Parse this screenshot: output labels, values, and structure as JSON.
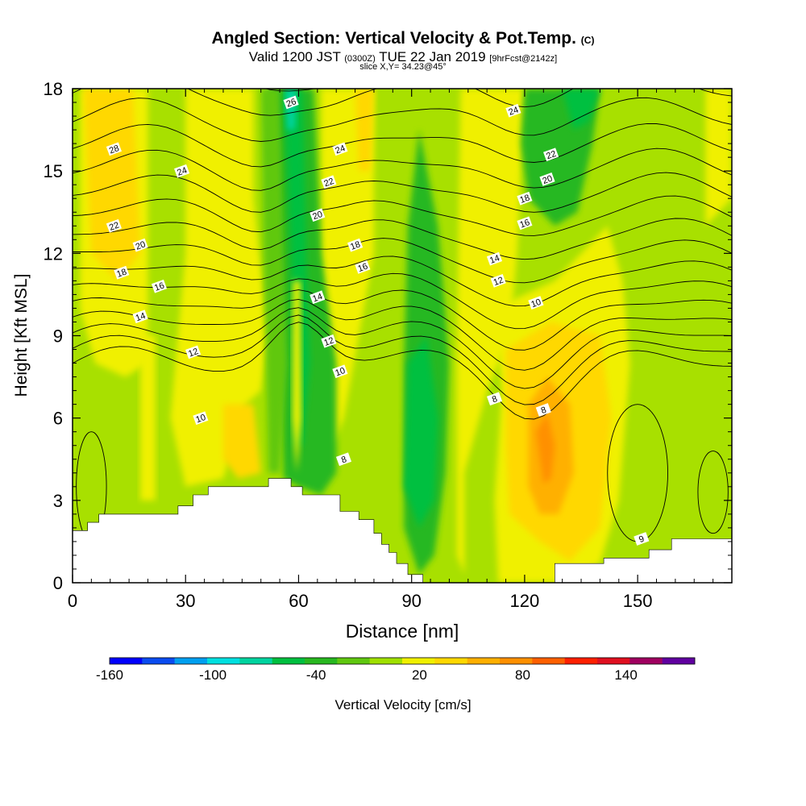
{
  "header": {
    "title_main": "Angled Section: Vertical Velocity & Pot.Temp.",
    "title_units": "(C)",
    "valid_prefix": "Valid 1200 JST",
    "valid_utc": "(0300Z)",
    "valid_date": "TUE 22 Jan 2019",
    "forecast": "[9hrFcst@2142z]",
    "slice": "slice X,Y= 34.23@45°"
  },
  "chart_data": {
    "type": "heatmap",
    "xlabel": "Distance [nm]",
    "ylabel": "Height [Kft MSL]",
    "xlim": [
      0,
      175
    ],
    "ylim": [
      0,
      18
    ],
    "x_ticks": [
      0,
      30,
      60,
      90,
      120,
      150
    ],
    "y_ticks": [
      0,
      3,
      6,
      9,
      12,
      15,
      18
    ],
    "colorbar": {
      "label": "Vertical Velocity [cm/s]",
      "min": -160,
      "max": 180,
      "step": 20,
      "tick_labels": [
        -160,
        -100,
        -40,
        20,
        80,
        140
      ],
      "colors": [
        "#0000ff",
        "#0a4cf0",
        "#00a0f0",
        "#00e0e0",
        "#00d4a0",
        "#00c040",
        "#28b820",
        "#60c810",
        "#a0e000",
        "#f0f000",
        "#ffd800",
        "#ffb000",
        "#ff9000",
        "#ff6000",
        "#ff2000",
        "#e01020",
        "#a00060",
        "#6000a0"
      ]
    },
    "terrain": [
      [
        0,
        1.9
      ],
      [
        4,
        1.9
      ],
      [
        4,
        2.2
      ],
      [
        7,
        2.2
      ],
      [
        7,
        2.5
      ],
      [
        28,
        2.5
      ],
      [
        28,
        2.8
      ],
      [
        32,
        2.8
      ],
      [
        32,
        3.2
      ],
      [
        36,
        3.2
      ],
      [
        36,
        3.5
      ],
      [
        52,
        3.5
      ],
      [
        52,
        3.8
      ],
      [
        58,
        3.8
      ],
      [
        58,
        3.5
      ],
      [
        61,
        3.5
      ],
      [
        61,
        3.2
      ],
      [
        71,
        3.2
      ],
      [
        71,
        2.6
      ],
      [
        76,
        2.6
      ],
      [
        76,
        2.3
      ],
      [
        80,
        2.3
      ],
      [
        80,
        1.8
      ],
      [
        82,
        1.8
      ],
      [
        82,
        1.4
      ],
      [
        84,
        1.4
      ],
      [
        84,
        1.1
      ],
      [
        86,
        1.1
      ],
      [
        86,
        0.7
      ],
      [
        89,
        0.7
      ],
      [
        89,
        0.3
      ],
      [
        93,
        0.3
      ],
      [
        93,
        0
      ],
      [
        128,
        0
      ],
      [
        128,
        0.7
      ],
      [
        141,
        0.7
      ],
      [
        141,
        0.9
      ],
      [
        153,
        0.9
      ],
      [
        153,
        1.2
      ],
      [
        159,
        1.2
      ],
      [
        159,
        1.6
      ],
      [
        175,
        1.6
      ]
    ],
    "theta_contours": {
      "levels": [
        8,
        9,
        10,
        11,
        12,
        13,
        14,
        15,
        16,
        17,
        18,
        19,
        20,
        21,
        22,
        23,
        24,
        25,
        26,
        27,
        28
      ],
      "labeled": [
        {
          "value": "26",
          "x": 58,
          "y": 17.5
        },
        {
          "value": "28",
          "x": 11,
          "y": 15.8
        },
        {
          "value": "24",
          "x": 29,
          "y": 15.0
        },
        {
          "value": "24",
          "x": 71,
          "y": 15.8
        },
        {
          "value": "24",
          "x": 117,
          "y": 17.2
        },
        {
          "value": "22",
          "x": 11,
          "y": 13.0
        },
        {
          "value": "22",
          "x": 68,
          "y": 14.6
        },
        {
          "value": "22",
          "x": 127,
          "y": 15.6
        },
        {
          "value": "20",
          "x": 18,
          "y": 12.3
        },
        {
          "value": "20",
          "x": 65,
          "y": 13.4
        },
        {
          "value": "20",
          "x": 126,
          "y": 14.7
        },
        {
          "value": "18",
          "x": 13,
          "y": 11.3
        },
        {
          "value": "18",
          "x": 75,
          "y": 12.3
        },
        {
          "value": "18",
          "x": 120,
          "y": 14.0
        },
        {
          "value": "16",
          "x": 23,
          "y": 10.8
        },
        {
          "value": "16",
          "x": 77,
          "y": 11.5
        },
        {
          "value": "16",
          "x": 120,
          "y": 13.1
        },
        {
          "value": "14",
          "x": 18,
          "y": 9.7
        },
        {
          "value": "14",
          "x": 65,
          "y": 10.4
        },
        {
          "value": "14",
          "x": 112,
          "y": 11.8
        },
        {
          "value": "12",
          "x": 32,
          "y": 8.4
        },
        {
          "value": "12",
          "x": 68,
          "y": 8.8
        },
        {
          "value": "12",
          "x": 113,
          "y": 11.0
        },
        {
          "value": "10",
          "x": 34,
          "y": 6.0
        },
        {
          "value": "10",
          "x": 71,
          "y": 7.7
        },
        {
          "value": "10",
          "x": 123,
          "y": 10.2
        },
        {
          "value": "8",
          "x": 72,
          "y": 4.5
        },
        {
          "value": "8",
          "x": 112,
          "y": 6.7
        },
        {
          "value": "8",
          "x": 125,
          "y": 6.3
        },
        {
          "value": "9",
          "x": 151,
          "y": 1.6
        }
      ]
    }
  }
}
